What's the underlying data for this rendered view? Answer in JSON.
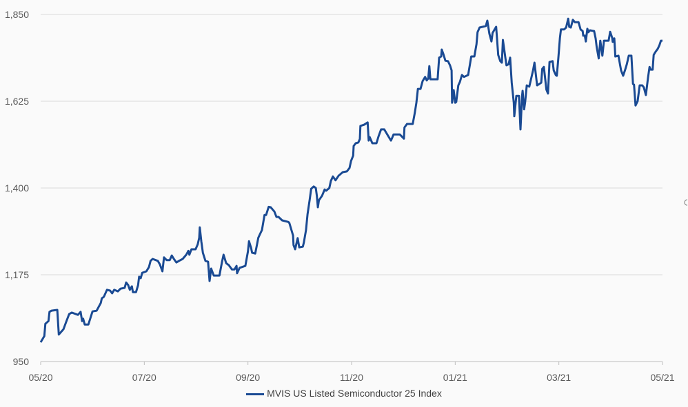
{
  "chart_data": {
    "type": "line",
    "title": "",
    "xlabel": "",
    "ylabel": "",
    "ylim": [
      950,
      1850
    ],
    "yticks": [
      950,
      1175,
      1400,
      1625,
      1850
    ],
    "ytick_labels": [
      "950",
      "1,175",
      "1,400",
      "1,625",
      "1,850"
    ],
    "xlim": [
      0,
      12
    ],
    "x_unit": "months since 05/20",
    "xticks": [
      0,
      2,
      4,
      6,
      8,
      10,
      12
    ],
    "xtick_labels": [
      "05/20",
      "07/20",
      "09/20",
      "11/20",
      "01/21",
      "03/21",
      "05/21"
    ],
    "grid": true,
    "legend_position": "bottom",
    "colors": {
      "line": "#1a4a93",
      "grid": "#d9d9d9",
      "axis": "#bfbfbf"
    },
    "series": [
      {
        "name": "MVIS US Listed Semiconductor 25 Index",
        "x": [
          0.0,
          0.07,
          0.09,
          0.15,
          0.17,
          0.21,
          0.32,
          0.35,
          0.44,
          0.49,
          0.55,
          0.6,
          0.72,
          0.77,
          0.8,
          0.82,
          0.85,
          0.92,
          1.0,
          1.08,
          1.16,
          1.18,
          1.22,
          1.28,
          1.34,
          1.38,
          1.42,
          1.49,
          1.54,
          1.62,
          1.65,
          1.69,
          1.72,
          1.76,
          1.78,
          1.84,
          1.88,
          1.9,
          1.93,
          1.96,
          2.04,
          2.09,
          2.12,
          2.16,
          2.26,
          2.3,
          2.35,
          2.38,
          2.43,
          2.49,
          2.53,
          2.57,
          2.62,
          2.67,
          2.74,
          2.81,
          2.85,
          2.87,
          2.91,
          2.99,
          3.03,
          3.06,
          3.07,
          3.1,
          3.13,
          3.18,
          3.23,
          3.26,
          3.29,
          3.34,
          3.45,
          3.5,
          3.53,
          3.58,
          3.63,
          3.69,
          3.74,
          3.78,
          3.79,
          3.84,
          3.95,
          4.0,
          4.02,
          4.06,
          4.08,
          4.14,
          4.18,
          4.2,
          4.23,
          4.27,
          4.32,
          4.35,
          4.4,
          4.44,
          4.51,
          4.55,
          4.59,
          4.66,
          4.78,
          4.8,
          4.87,
          4.88,
          4.91,
          4.96,
          4.99,
          5.06,
          5.08,
          5.12,
          5.15,
          5.19,
          5.22,
          5.27,
          5.31,
          5.33,
          5.35,
          5.37,
          5.43,
          5.48,
          5.51,
          5.57,
          5.6,
          5.64,
          5.69,
          5.75,
          5.83,
          5.91,
          5.96,
          5.99,
          6.03,
          6.04,
          6.08,
          6.13,
          6.16,
          6.17,
          6.24,
          6.31,
          6.33,
          6.35,
          6.4,
          6.48,
          6.52,
          6.57,
          6.63,
          6.71,
          6.76,
          6.78,
          6.81,
          6.93,
          7.01,
          7.02,
          7.07,
          7.18,
          7.22,
          7.25,
          7.28,
          7.33,
          7.37,
          7.42,
          7.45,
          7.48,
          7.5,
          7.52,
          7.66,
          7.69,
          7.73,
          7.74,
          7.77,
          7.81,
          7.86,
          7.9,
          7.93,
          7.94,
          7.97,
          8.0,
          8.02,
          8.06,
          8.09,
          8.13,
          8.17,
          8.25,
          8.31,
          8.37,
          8.41,
          8.43,
          8.47,
          8.59,
          8.62,
          8.66,
          8.7,
          8.72,
          8.79,
          8.83,
          8.87,
          8.9,
          8.92,
          8.97,
          8.99,
          9.03,
          9.06,
          9.09,
          9.13,
          9.14,
          9.18,
          9.23,
          9.26,
          9.29,
          9.3,
          9.33,
          9.35,
          9.38,
          9.43,
          9.5,
          9.53,
          9.58,
          9.66,
          9.68,
          9.71,
          9.76,
          9.79,
          9.82,
          9.88,
          9.9,
          9.94,
          9.96,
          9.99,
          10.02,
          10.04,
          10.1,
          10.14,
          10.18,
          10.2,
          10.23,
          10.27,
          10.31,
          10.38,
          10.42,
          10.46,
          10.47,
          10.5,
          10.52,
          10.55,
          10.57,
          10.6,
          10.68,
          10.71,
          10.73,
          10.77,
          10.8,
          10.84,
          10.87,
          10.96,
          10.99,
          11.03,
          11.04,
          11.07,
          11.09,
          11.15,
          11.2,
          11.24,
          11.28,
          11.31,
          11.35,
          11.4,
          11.43,
          11.45,
          11.48,
          11.52,
          11.56,
          11.61,
          11.64,
          11.68,
          11.72,
          11.75,
          11.77,
          11.81,
          11.83,
          11.86,
          11.91,
          11.94,
          11.97,
          12.0
        ],
        "y": [
          1000,
          1016,
          1048,
          1055,
          1079,
          1082,
          1084,
          1020,
          1034,
          1052,
          1073,
          1077,
          1071,
          1079,
          1055,
          1061,
          1046,
          1046,
          1080,
          1082,
          1102,
          1114,
          1118,
          1136,
          1134,
          1127,
          1136,
          1132,
          1139,
          1141,
          1155,
          1148,
          1136,
          1145,
          1130,
          1130,
          1148,
          1170,
          1166,
          1180,
          1184,
          1195,
          1211,
          1216,
          1211,
          1202,
          1184,
          1220,
          1213,
          1213,
          1225,
          1216,
          1207,
          1211,
          1216,
          1227,
          1237,
          1227,
          1241,
          1241,
          1254,
          1271,
          1298,
          1262,
          1232,
          1211,
          1209,
          1159,
          1191,
          1173,
          1173,
          1209,
          1227,
          1205,
          1200,
          1189,
          1189,
          1198,
          1179,
          1193,
          1198,
          1236,
          1262,
          1245,
          1232,
          1230,
          1257,
          1271,
          1280,
          1291,
          1330,
          1330,
          1351,
          1350,
          1339,
          1325,
          1325,
          1316,
          1312,
          1309,
          1277,
          1252,
          1241,
          1270,
          1246,
          1248,
          1259,
          1291,
          1332,
          1368,
          1398,
          1404,
          1400,
          1380,
          1350,
          1368,
          1380,
          1396,
          1393,
          1400,
          1418,
          1430,
          1420,
          1432,
          1441,
          1443,
          1452,
          1470,
          1484,
          1509,
          1516,
          1518,
          1527,
          1561,
          1564,
          1570,
          1523,
          1532,
          1516,
          1516,
          1534,
          1552,
          1552,
          1534,
          1523,
          1529,
          1539,
          1539,
          1528,
          1557,
          1566,
          1566,
          1595,
          1621,
          1657,
          1657,
          1677,
          1688,
          1679,
          1684,
          1716,
          1682,
          1682,
          1738,
          1741,
          1759,
          1748,
          1730,
          1729,
          1718,
          1705,
          1621,
          1654,
          1621,
          1623,
          1666,
          1675,
          1693,
          1688,
          1693,
          1741,
          1741,
          1773,
          1804,
          1816,
          1820,
          1834,
          1800,
          1780,
          1802,
          1818,
          1745,
          1729,
          1725,
          1784,
          1736,
          1718,
          1721,
          1738,
          1673,
          1621,
          1586,
          1639,
          1639,
          1552,
          1639,
          1652,
          1604,
          1623,
          1666,
          1663,
          1704,
          1725,
          1666,
          1673,
          1709,
          1714,
          1655,
          1645,
          1727,
          1729,
          1705,
          1693,
          1691,
          1736,
          1789,
          1811,
          1811,
          1816,
          1839,
          1818,
          1816,
          1836,
          1830,
          1830,
          1811,
          1807,
          1795,
          1795,
          1780,
          1813,
          1804,
          1809,
          1807,
          1788,
          1766,
          1736,
          1782,
          1743,
          1782,
          1782,
          1805,
          1789,
          1779,
          1788,
          1741,
          1743,
          1705,
          1691,
          1707,
          1720,
          1743,
          1743,
          1670,
          1668,
          1614,
          1625,
          1666,
          1666,
          1661,
          1641,
          1686,
          1714,
          1707,
          1707,
          1745,
          1752,
          1761,
          1770,
          1782,
          1782
        ]
      }
    ]
  }
}
